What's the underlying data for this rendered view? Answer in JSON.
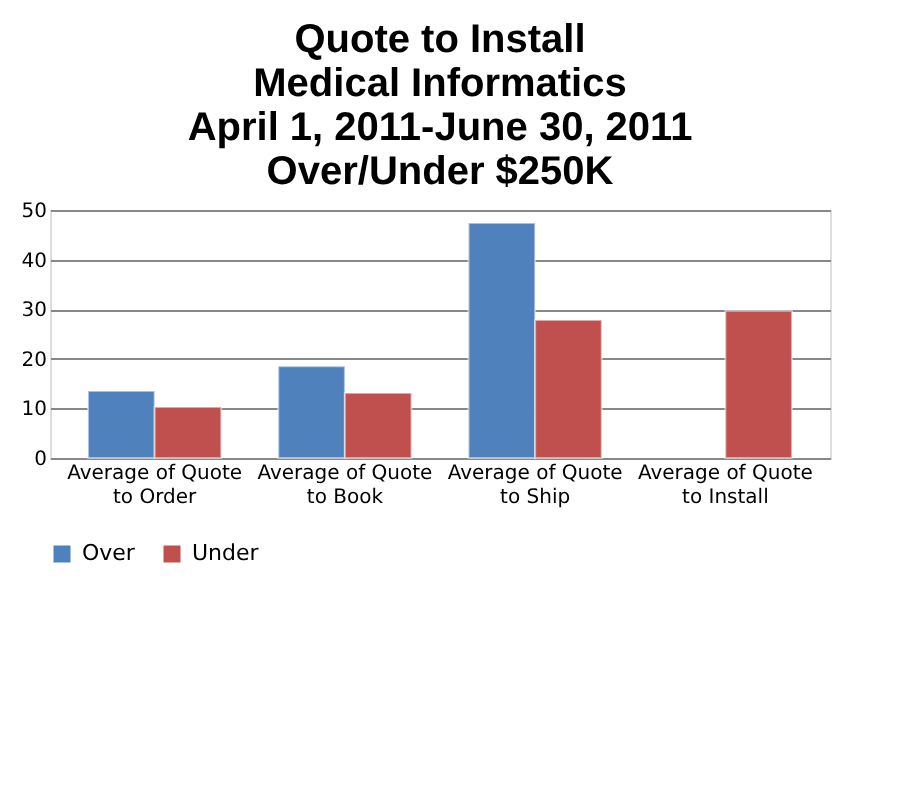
{
  "chart_data": {
    "type": "bar",
    "title": "Quote to Install\nMedical Informatics\nApril 1, 2011-June 30, 2011\nOver/Under $250K",
    "categories": [
      "Average of Quote to Order",
      "Average of Quote to Book",
      "Average of Quote to Ship",
      "Average of Quote to Install"
    ],
    "series": [
      {
        "name": "Over",
        "color": "#4f81bd",
        "values": [
          13.5,
          18.5,
          47.4,
          null
        ]
      },
      {
        "name": "Under",
        "color": "#c0504d",
        "values": [
          10.3,
          13.1,
          27.8,
          29.7
        ]
      }
    ],
    "ylim": [
      0,
      50
    ],
    "yticks": [
      0,
      10,
      20,
      30,
      40,
      50
    ],
    "grid": "y",
    "legend": "bottom"
  }
}
